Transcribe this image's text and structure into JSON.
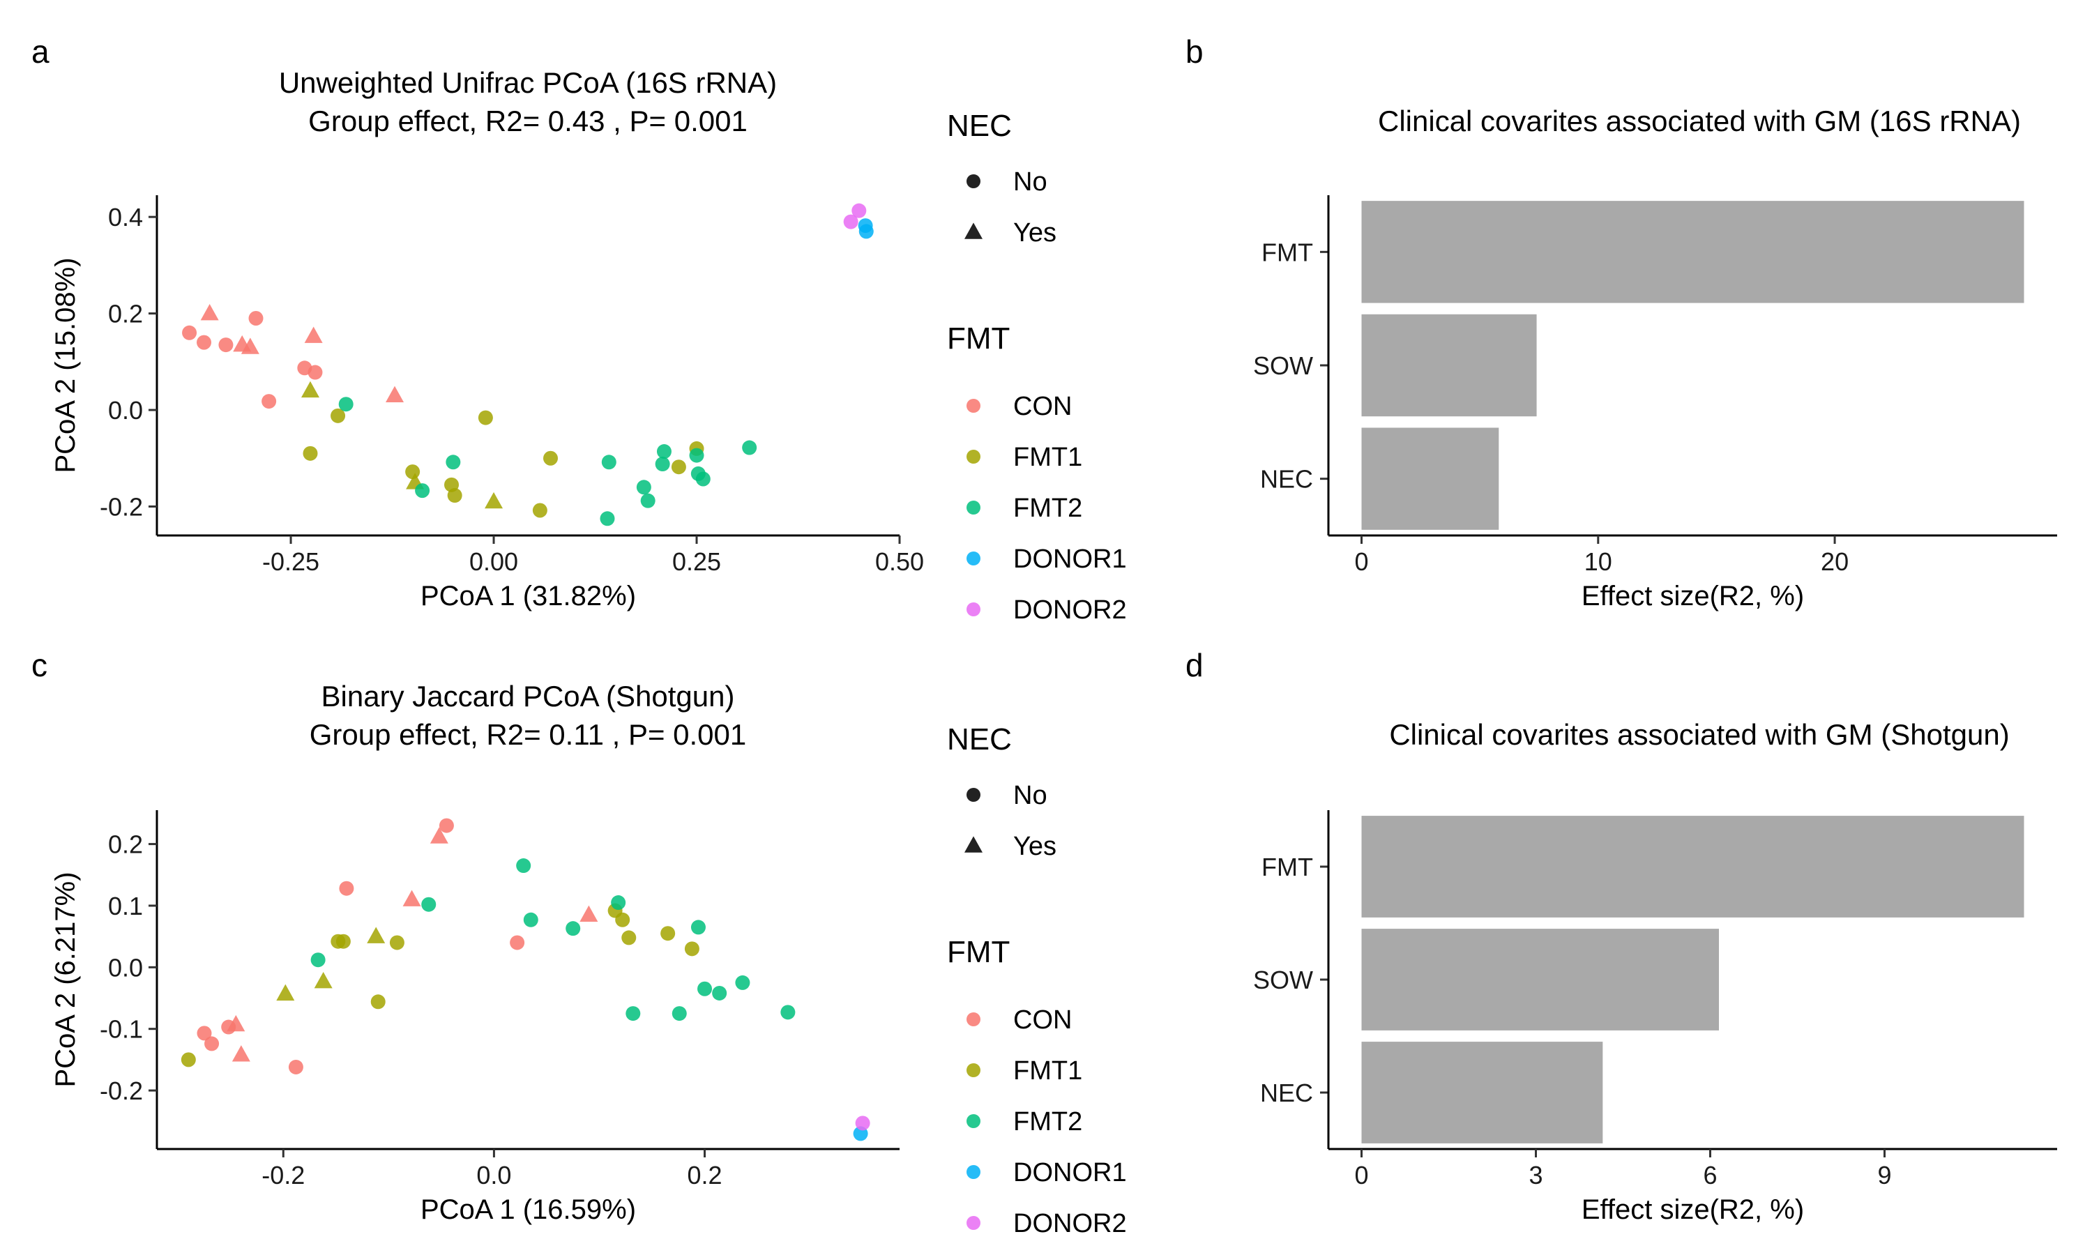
{
  "colors": {
    "CON": "#F8766D",
    "FMT1": "#A3A500",
    "FMT2": "#00BF7D",
    "DONOR1": "#00B0F6",
    "DONOR2": "#E76BF3",
    "bar": "#A9A9A9",
    "axis": "#000000"
  },
  "chart_data": [
    {
      "id": "a",
      "type": "scatter",
      "panel_label": "a",
      "title": "Unweighted Unifrac  PCoA (16S rRNA)",
      "subtitle": "Group effect, R2= 0.43 , P= 0.001",
      "xlabel": "PCoA 1 (31.82%)",
      "ylabel": "PCoA 2 (15.08%)",
      "xlim": [
        -0.415,
        0.5
      ],
      "ylim": [
        -0.26,
        0.445
      ],
      "xticks": [
        -0.25,
        0.0,
        0.25,
        0.5
      ],
      "xtick_labels": [
        "-0.25",
        "0.00",
        "0.25",
        "0.50"
      ],
      "yticks": [
        -0.2,
        0.0,
        0.2,
        0.4
      ],
      "ytick_labels": [
        "-0.2",
        "0.0",
        "0.2",
        "0.4"
      ],
      "grid": false,
      "legend_position": "right",
      "legends": [
        {
          "title": "NEC",
          "entries": [
            {
              "label": "No",
              "shape": "circle"
            },
            {
              "label": "Yes",
              "shape": "triangle"
            }
          ]
        },
        {
          "title": "FMT",
          "entries": [
            {
              "label": "CON",
              "group": "CON"
            },
            {
              "label": "FMT1",
              "group": "FMT1"
            },
            {
              "label": "FMT2",
              "group": "FMT2"
            },
            {
              "label": "DONOR1",
              "group": "DONOR1"
            },
            {
              "label": "DONOR2",
              "group": "DONOR2"
            }
          ]
        }
      ],
      "points": [
        {
          "x": -0.375,
          "y": 0.16,
          "group": "CON",
          "nec": "No"
        },
        {
          "x": -0.357,
          "y": 0.14,
          "group": "CON",
          "nec": "No"
        },
        {
          "x": -0.35,
          "y": 0.2,
          "group": "CON",
          "nec": "Yes"
        },
        {
          "x": -0.33,
          "y": 0.135,
          "group": "CON",
          "nec": "No"
        },
        {
          "x": -0.31,
          "y": 0.135,
          "group": "CON",
          "nec": "Yes"
        },
        {
          "x": -0.3,
          "y": 0.13,
          "group": "CON",
          "nec": "Yes"
        },
        {
          "x": -0.293,
          "y": 0.19,
          "group": "CON",
          "nec": "No"
        },
        {
          "x": -0.277,
          "y": 0.018,
          "group": "CON",
          "nec": "No"
        },
        {
          "x": -0.233,
          "y": 0.087,
          "group": "CON",
          "nec": "No"
        },
        {
          "x": -0.222,
          "y": 0.153,
          "group": "CON",
          "nec": "Yes"
        },
        {
          "x": -0.22,
          "y": 0.078,
          "group": "CON",
          "nec": "No"
        },
        {
          "x": -0.122,
          "y": 0.03,
          "group": "CON",
          "nec": "Yes"
        },
        {
          "x": -0.226,
          "y": 0.04,
          "group": "FMT1",
          "nec": "Yes"
        },
        {
          "x": -0.226,
          "y": -0.09,
          "group": "FMT1",
          "nec": "No"
        },
        {
          "x": -0.192,
          "y": -0.012,
          "group": "FMT1",
          "nec": "No"
        },
        {
          "x": -0.1,
          "y": -0.128,
          "group": "FMT1",
          "nec": "No"
        },
        {
          "x": -0.097,
          "y": -0.15,
          "group": "FMT1",
          "nec": "Yes"
        },
        {
          "x": -0.052,
          "y": -0.155,
          "group": "FMT1",
          "nec": "No"
        },
        {
          "x": -0.048,
          "y": -0.177,
          "group": "FMT1",
          "nec": "No"
        },
        {
          "x": -0.01,
          "y": -0.016,
          "group": "FMT1",
          "nec": "No"
        },
        {
          "x": 0.0,
          "y": -0.19,
          "group": "FMT1",
          "nec": "Yes"
        },
        {
          "x": 0.057,
          "y": -0.208,
          "group": "FMT1",
          "nec": "No"
        },
        {
          "x": 0.07,
          "y": -0.1,
          "group": "FMT1",
          "nec": "No"
        },
        {
          "x": 0.228,
          "y": -0.118,
          "group": "FMT1",
          "nec": "No"
        },
        {
          "x": 0.25,
          "y": -0.08,
          "group": "FMT1",
          "nec": "No"
        },
        {
          "x": -0.182,
          "y": 0.012,
          "group": "FMT2",
          "nec": "No"
        },
        {
          "x": -0.088,
          "y": -0.167,
          "group": "FMT2",
          "nec": "No"
        },
        {
          "x": -0.05,
          "y": -0.108,
          "group": "FMT2",
          "nec": "No"
        },
        {
          "x": 0.14,
          "y": -0.225,
          "group": "FMT2",
          "nec": "No"
        },
        {
          "x": 0.142,
          "y": -0.108,
          "group": "FMT2",
          "nec": "No"
        },
        {
          "x": 0.185,
          "y": -0.16,
          "group": "FMT2",
          "nec": "No"
        },
        {
          "x": 0.19,
          "y": -0.188,
          "group": "FMT2",
          "nec": "No"
        },
        {
          "x": 0.208,
          "y": -0.112,
          "group": "FMT2",
          "nec": "No"
        },
        {
          "x": 0.21,
          "y": -0.086,
          "group": "FMT2",
          "nec": "No"
        },
        {
          "x": 0.25,
          "y": -0.094,
          "group": "FMT2",
          "nec": "No"
        },
        {
          "x": 0.252,
          "y": -0.132,
          "group": "FMT2",
          "nec": "No"
        },
        {
          "x": 0.258,
          "y": -0.143,
          "group": "FMT2",
          "nec": "No"
        },
        {
          "x": 0.315,
          "y": -0.078,
          "group": "FMT2",
          "nec": "No"
        },
        {
          "x": 0.458,
          "y": 0.382,
          "group": "DONOR1",
          "nec": "No"
        },
        {
          "x": 0.459,
          "y": 0.37,
          "group": "DONOR1",
          "nec": "No"
        },
        {
          "x": 0.44,
          "y": 0.39,
          "group": "DONOR2",
          "nec": "No"
        },
        {
          "x": 0.45,
          "y": 0.413,
          "group": "DONOR2",
          "nec": "No"
        }
      ]
    },
    {
      "id": "b",
      "type": "bar",
      "orientation": "horizontal",
      "panel_label": "b",
      "title": "Clinical covarites associated with GM (16S rRNA)",
      "xlabel": "Effect size(R2, %)",
      "ylabel": "",
      "categories": [
        "FMT",
        "SOW",
        "NEC"
      ],
      "values": [
        28.0,
        7.4,
        5.8
      ],
      "xlim": [
        -1.4,
        29.4
      ],
      "xticks": [
        0,
        10,
        20
      ],
      "xtick_labels": [
        "0",
        "10",
        "20"
      ],
      "grid": false
    },
    {
      "id": "c",
      "type": "scatter",
      "panel_label": "c",
      "title": "Binary Jaccard  PCoA (Shotgun)",
      "subtitle": "Group effect, R2= 0.11 , P= 0.001",
      "xlabel": "PCoA 1 (16.59%)",
      "ylabel": "PCoA 2 (6.217%)",
      "xlim": [
        -0.32,
        0.385
      ],
      "ylim": [
        -0.295,
        0.255
      ],
      "xticks": [
        -0.2,
        0.0,
        0.2
      ],
      "xtick_labels": [
        "-0.2",
        "0.0",
        "0.2"
      ],
      "yticks": [
        -0.2,
        -0.1,
        0.0,
        0.1,
        0.2
      ],
      "ytick_labels": [
        "-0.2",
        "-0.1",
        "0.0",
        "0.1",
        "0.2"
      ],
      "grid": false,
      "legend_position": "right",
      "legends": [
        {
          "title": "NEC",
          "entries": [
            {
              "label": "No",
              "shape": "circle"
            },
            {
              "label": "Yes",
              "shape": "triangle"
            }
          ]
        },
        {
          "title": "FMT",
          "entries": [
            {
              "label": "CON",
              "group": "CON"
            },
            {
              "label": "FMT1",
              "group": "FMT1"
            },
            {
              "label": "FMT2",
              "group": "FMT2"
            },
            {
              "label": "DONOR1",
              "group": "DONOR1"
            },
            {
              "label": "DONOR2",
              "group": "DONOR2"
            }
          ]
        }
      ],
      "points": [
        {
          "x": -0.275,
          "y": -0.107,
          "group": "CON",
          "nec": "No"
        },
        {
          "x": -0.268,
          "y": -0.124,
          "group": "CON",
          "nec": "No"
        },
        {
          "x": -0.252,
          "y": -0.097,
          "group": "CON",
          "nec": "No"
        },
        {
          "x": -0.245,
          "y": -0.093,
          "group": "CON",
          "nec": "Yes"
        },
        {
          "x": -0.24,
          "y": -0.142,
          "group": "CON",
          "nec": "Yes"
        },
        {
          "x": -0.188,
          "y": -0.162,
          "group": "CON",
          "nec": "No"
        },
        {
          "x": -0.14,
          "y": 0.128,
          "group": "CON",
          "nec": "No"
        },
        {
          "x": -0.078,
          "y": 0.11,
          "group": "CON",
          "nec": "Yes"
        },
        {
          "x": -0.052,
          "y": 0.212,
          "group": "CON",
          "nec": "Yes"
        },
        {
          "x": -0.045,
          "y": 0.23,
          "group": "CON",
          "nec": "No"
        },
        {
          "x": 0.022,
          "y": 0.04,
          "group": "CON",
          "nec": "No"
        },
        {
          "x": 0.09,
          "y": 0.085,
          "group": "CON",
          "nec": "Yes"
        },
        {
          "x": -0.29,
          "y": -0.15,
          "group": "FMT1",
          "nec": "No"
        },
        {
          "x": -0.198,
          "y": -0.043,
          "group": "FMT1",
          "nec": "Yes"
        },
        {
          "x": -0.162,
          "y": -0.023,
          "group": "FMT1",
          "nec": "Yes"
        },
        {
          "x": -0.148,
          "y": 0.042,
          "group": "FMT1",
          "nec": "No"
        },
        {
          "x": -0.143,
          "y": 0.042,
          "group": "FMT1",
          "nec": "No"
        },
        {
          "x": -0.112,
          "y": 0.05,
          "group": "FMT1",
          "nec": "Yes"
        },
        {
          "x": -0.11,
          "y": -0.056,
          "group": "FMT1",
          "nec": "No"
        },
        {
          "x": -0.092,
          "y": 0.04,
          "group": "FMT1",
          "nec": "No"
        },
        {
          "x": 0.115,
          "y": 0.092,
          "group": "FMT1",
          "nec": "No"
        },
        {
          "x": 0.122,
          "y": 0.077,
          "group": "FMT1",
          "nec": "No"
        },
        {
          "x": 0.128,
          "y": 0.048,
          "group": "FMT1",
          "nec": "No"
        },
        {
          "x": 0.165,
          "y": 0.055,
          "group": "FMT1",
          "nec": "No"
        },
        {
          "x": 0.188,
          "y": 0.03,
          "group": "FMT1",
          "nec": "No"
        },
        {
          "x": -0.167,
          "y": 0.012,
          "group": "FMT2",
          "nec": "No"
        },
        {
          "x": -0.062,
          "y": 0.102,
          "group": "FMT2",
          "nec": "No"
        },
        {
          "x": 0.028,
          "y": 0.165,
          "group": "FMT2",
          "nec": "No"
        },
        {
          "x": 0.035,
          "y": 0.077,
          "group": "FMT2",
          "nec": "No"
        },
        {
          "x": 0.075,
          "y": 0.063,
          "group": "FMT2",
          "nec": "No"
        },
        {
          "x": 0.118,
          "y": 0.105,
          "group": "FMT2",
          "nec": "No"
        },
        {
          "x": 0.132,
          "y": -0.075,
          "group": "FMT2",
          "nec": "No"
        },
        {
          "x": 0.176,
          "y": -0.075,
          "group": "FMT2",
          "nec": "No"
        },
        {
          "x": 0.194,
          "y": 0.065,
          "group": "FMT2",
          "nec": "No"
        },
        {
          "x": 0.2,
          "y": -0.035,
          "group": "FMT2",
          "nec": "No"
        },
        {
          "x": 0.214,
          "y": -0.042,
          "group": "FMT2",
          "nec": "No"
        },
        {
          "x": 0.236,
          "y": -0.025,
          "group": "FMT2",
          "nec": "No"
        },
        {
          "x": 0.279,
          "y": -0.073,
          "group": "FMT2",
          "nec": "No"
        },
        {
          "x": 0.348,
          "y": -0.27,
          "group": "DONOR1",
          "nec": "No"
        },
        {
          "x": 0.35,
          "y": -0.253,
          "group": "DONOR2",
          "nec": "No"
        }
      ]
    },
    {
      "id": "d",
      "type": "bar",
      "orientation": "horizontal",
      "panel_label": "d",
      "title": "Clinical covarites associated with GM (Shotgun)",
      "xlabel": "Effect size(R2, %)",
      "ylabel": "",
      "categories": [
        "FMT",
        "SOW",
        "NEC"
      ],
      "values": [
        11.4,
        6.15,
        4.15
      ],
      "xlim": [
        -0.57,
        11.97
      ],
      "xticks": [
        0,
        3,
        6,
        9
      ],
      "xtick_labels": [
        "0",
        "3",
        "6",
        "9"
      ],
      "grid": false
    }
  ]
}
